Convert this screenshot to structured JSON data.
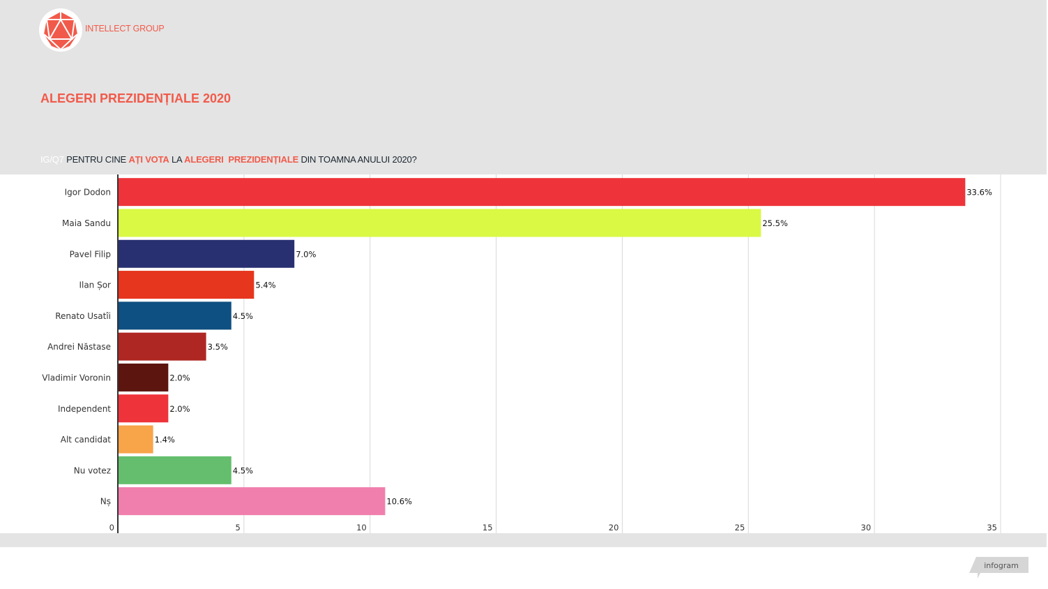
{
  "brand": {
    "name": "INTELLECT GROUP",
    "logo_icon": "icosahedron-logo-icon",
    "color": "#f15a4a"
  },
  "header": {
    "title": "ALEGERI PREZIDENȚIALE 2020",
    "subtitle": {
      "code": "IG/Q7",
      "part1": " PENTRU CINE ",
      "hl1": "AȚI VOTA",
      "part2": " LA ",
      "hl2": "ALEGERI  PREZIDENȚIALE",
      "part3": " DIN TOAMNA ANULUI 2020?"
    }
  },
  "footer": {
    "badge": "infogram"
  },
  "chart_data": {
    "type": "bar",
    "orientation": "horizontal",
    "title": "ALEGERI PREZIDENȚIALE 2020",
    "subtitle": "IG/Q7 PENTRU CINE AȚI VOTA LA ALEGERI PREZIDENȚIALE DIN TOAMNA ANULUI 2020?",
    "xlabel": "",
    "ylabel": "",
    "xlim": [
      0,
      35
    ],
    "xticks": [
      0,
      5,
      10,
      15,
      20,
      25,
      30,
      35
    ],
    "grid": true,
    "legend": "none",
    "value_suffix": "%",
    "categories": [
      "Igor Dodon",
      "Maia Sandu",
      "Pavel Filip",
      "Ilan Șor",
      "Renato Usatîi",
      "Andrei Năstase",
      "Vladimir Voronin",
      "Independent",
      "Alt candidat",
      "Nu votez",
      "Nș"
    ],
    "values": [
      33.6,
      25.5,
      7.0,
      5.4,
      4.5,
      3.5,
      2.0,
      2.0,
      1.4,
      4.5,
      10.6
    ],
    "labels": [
      "33.6%",
      "25.5%",
      "7.0%",
      "5.4%",
      "4.5%",
      "3.5%",
      "2.0%",
      "2.0%",
      "1.4%",
      "4.5%",
      "10.6%"
    ],
    "colors": [
      "#ee343a",
      "#d9f944",
      "#283071",
      "#e6361e",
      "#0e5081",
      "#ae2723",
      "#5d1510",
      "#ee343a",
      "#f8a449",
      "#64be6d",
      "#f07fae"
    ]
  }
}
